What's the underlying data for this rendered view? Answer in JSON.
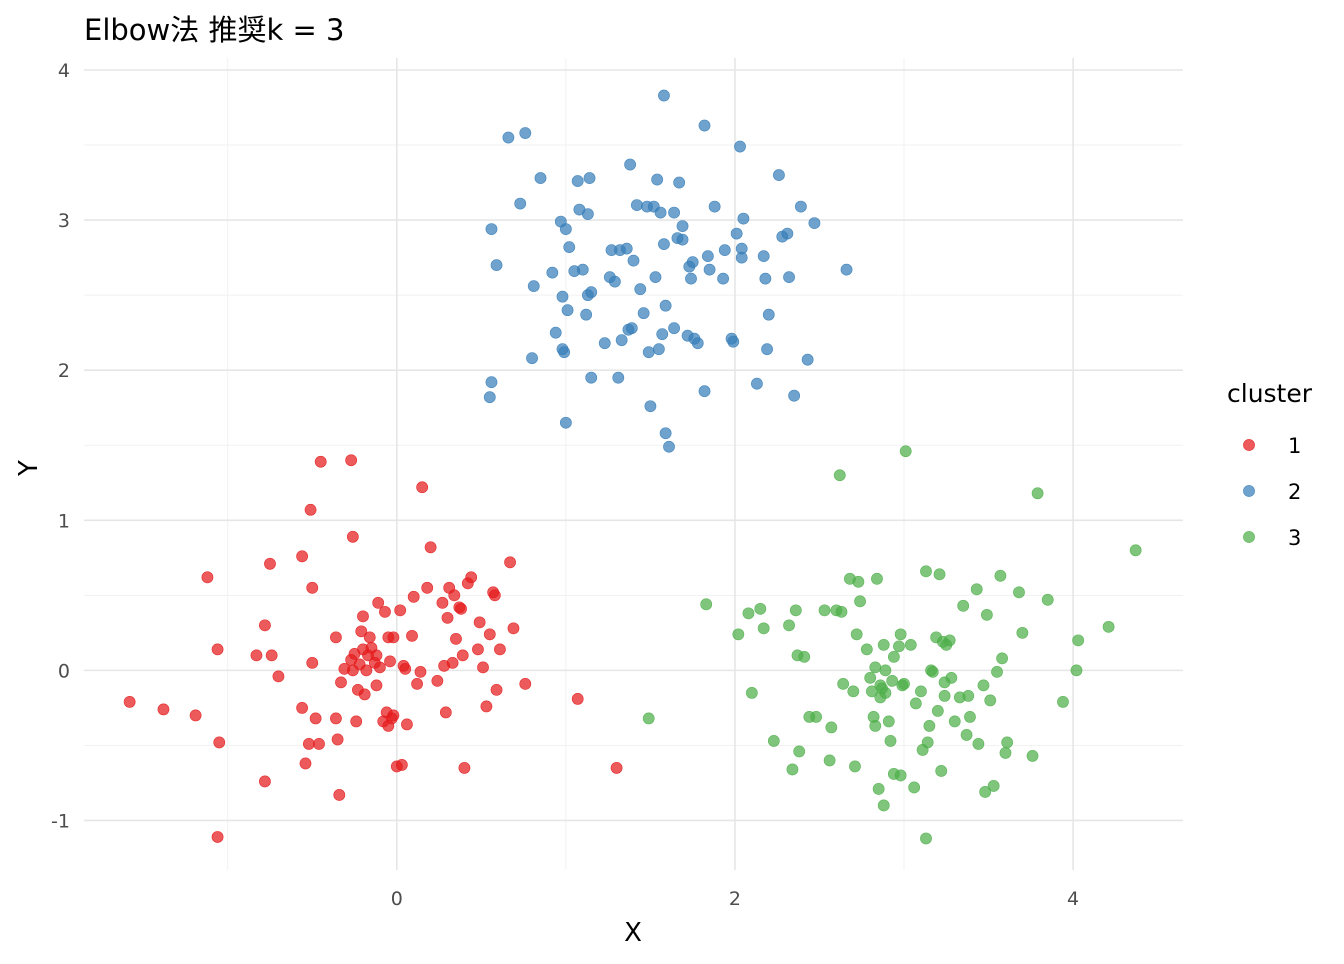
{
  "chart_data": {
    "type": "scatter",
    "title": "Elbow法 推奨k = 3",
    "xlabel": "X",
    "ylabel": "Y",
    "xlim": [
      -1.85,
      4.65
    ],
    "ylim": [
      -1.33,
      4.08
    ],
    "x_ticks": [
      0,
      2,
      4
    ],
    "y_ticks": [
      -1,
      0,
      1,
      2,
      3,
      4
    ],
    "grid": true,
    "legend": {
      "title": "cluster",
      "position": "right",
      "entries": [
        "1",
        "2",
        "3"
      ]
    },
    "colors": {
      "1": "#E41A1C",
      "2": "#377EB8",
      "3": "#4DAF4A"
    },
    "series": [
      {
        "name": "1",
        "points": [
          [
            -1.58,
            -0.21
          ],
          [
            -1.38,
            -0.26
          ],
          [
            -1.19,
            -0.3
          ],
          [
            -1.05,
            -0.48
          ],
          [
            -1.06,
            0.14
          ],
          [
            -1.12,
            0.62
          ],
          [
            -1.06,
            -1.11
          ],
          [
            -0.83,
            0.1
          ],
          [
            -0.78,
            -0.74
          ],
          [
            -0.78,
            0.3
          ],
          [
            -0.74,
            0.1
          ],
          [
            -0.75,
            0.71
          ],
          [
            -0.7,
            -0.04
          ],
          [
            -0.56,
            0.76
          ],
          [
            -0.56,
            -0.25
          ],
          [
            -0.52,
            -0.49
          ],
          [
            -0.5,
            0.05
          ],
          [
            -0.48,
            -0.32
          ],
          [
            -0.5,
            0.55
          ],
          [
            -0.54,
            -0.62
          ],
          [
            -0.51,
            1.07
          ],
          [
            -0.46,
            -0.49
          ],
          [
            -0.45,
            1.39
          ],
          [
            -0.36,
            -0.32
          ],
          [
            -0.36,
            0.22
          ],
          [
            -0.35,
            -0.46
          ],
          [
            -0.33,
            -0.08
          ],
          [
            -0.31,
            0.01
          ],
          [
            -0.34,
            -0.83
          ],
          [
            -0.27,
            1.4
          ],
          [
            -0.26,
            0.0
          ],
          [
            -0.27,
            0.07
          ],
          [
            -0.26,
            0.89
          ],
          [
            -0.25,
            0.11
          ],
          [
            -0.24,
            -0.34
          ],
          [
            -0.23,
            -0.13
          ],
          [
            -0.22,
            0.04
          ],
          [
            -0.21,
            0.26
          ],
          [
            -0.2,
            0.36
          ],
          [
            -0.19,
            -0.16
          ],
          [
            -0.18,
            0.0
          ],
          [
            -0.17,
            0.1
          ],
          [
            -0.16,
            0.22
          ],
          [
            -0.15,
            0.15
          ],
          [
            -0.13,
            0.05
          ],
          [
            -0.12,
            -0.1
          ],
          [
            -0.11,
            0.45
          ],
          [
            -0.1,
            0.02
          ],
          [
            -0.08,
            -0.34
          ],
          [
            -0.07,
            0.39
          ],
          [
            -0.06,
            -0.28
          ],
          [
            -0.05,
            0.22
          ],
          [
            -0.05,
            -0.37
          ],
          [
            -0.04,
            0.06
          ],
          [
            -0.03,
            -0.32
          ],
          [
            -0.02,
            0.22
          ],
          [
            0.0,
            -0.64
          ],
          [
            0.02,
            0.4
          ],
          [
            0.03,
            -0.63
          ],
          [
            0.04,
            0.03
          ],
          [
            0.05,
            0.01
          ],
          [
            0.06,
            -0.36
          ],
          [
            0.09,
            0.23
          ],
          [
            0.1,
            0.49
          ],
          [
            0.12,
            -0.09
          ],
          [
            0.15,
            1.22
          ],
          [
            0.18,
            0.55
          ],
          [
            0.2,
            0.82
          ],
          [
            0.24,
            -0.07
          ],
          [
            0.27,
            0.45
          ],
          [
            0.28,
            0.03
          ],
          [
            0.29,
            -0.28
          ],
          [
            0.31,
            0.55
          ],
          [
            0.33,
            0.05
          ],
          [
            0.34,
            0.5
          ],
          [
            0.35,
            0.21
          ],
          [
            0.37,
            0.42
          ],
          [
            0.39,
            0.1
          ],
          [
            0.4,
            -0.65
          ],
          [
            0.42,
            0.58
          ],
          [
            0.44,
            0.62
          ],
          [
            0.48,
            0.14
          ],
          [
            0.49,
            0.32
          ],
          [
            0.51,
            0.02
          ],
          [
            0.53,
            -0.24
          ],
          [
            0.55,
            0.24
          ],
          [
            0.57,
            0.52
          ],
          [
            0.59,
            -0.13
          ],
          [
            0.61,
            0.14
          ],
          [
            0.67,
            0.72
          ],
          [
            0.69,
            0.28
          ],
          [
            0.76,
            -0.09
          ],
          [
            1.07,
            -0.19
          ],
          [
            1.3,
            -0.65
          ],
          [
            0.38,
            0.41
          ],
          [
            -0.2,
            0.14
          ],
          [
            0.58,
            0.5
          ],
          [
            -0.02,
            -0.3
          ],
          [
            0.14,
            -0.01
          ],
          [
            0.3,
            0.35
          ],
          [
            -0.12,
            0.1
          ]
        ]
      },
      {
        "name": "2",
        "points": [
          [
            0.55,
            1.82
          ],
          [
            0.56,
            1.92
          ],
          [
            0.56,
            2.94
          ],
          [
            0.59,
            2.7
          ],
          [
            0.66,
            3.55
          ],
          [
            0.73,
            3.11
          ],
          [
            0.76,
            3.58
          ],
          [
            0.8,
            2.08
          ],
          [
            0.81,
            2.56
          ],
          [
            0.85,
            3.28
          ],
          [
            0.92,
            2.65
          ],
          [
            0.94,
            2.25
          ],
          [
            0.97,
            2.99
          ],
          [
            0.98,
            2.14
          ],
          [
            0.98,
            2.49
          ],
          [
            0.99,
            2.12
          ],
          [
            1.0,
            1.65
          ],
          [
            1.01,
            2.4
          ],
          [
            1.02,
            2.82
          ],
          [
            1.05,
            2.66
          ],
          [
            1.07,
            3.26
          ],
          [
            1.1,
            2.67
          ],
          [
            1.12,
            2.37
          ],
          [
            1.13,
            3.04
          ],
          [
            1.13,
            2.5
          ],
          [
            1.14,
            3.28
          ],
          [
            1.15,
            2.52
          ],
          [
            1.15,
            1.95
          ],
          [
            1.23,
            2.18
          ],
          [
            1.26,
            2.62
          ],
          [
            1.29,
            2.59
          ],
          [
            1.31,
            1.95
          ],
          [
            1.32,
            2.8
          ],
          [
            1.33,
            2.2
          ],
          [
            1.36,
            2.81
          ],
          [
            1.37,
            2.27
          ],
          [
            1.38,
            3.37
          ],
          [
            1.39,
            2.28
          ],
          [
            1.4,
            2.73
          ],
          [
            1.42,
            3.1
          ],
          [
            1.44,
            2.54
          ],
          [
            1.46,
            2.38
          ],
          [
            1.48,
            3.09
          ],
          [
            1.49,
            2.12
          ],
          [
            1.5,
            1.76
          ],
          [
            1.52,
            3.09
          ],
          [
            1.53,
            2.62
          ],
          [
            1.54,
            3.27
          ],
          [
            1.55,
            2.14
          ],
          [
            1.57,
            2.24
          ],
          [
            1.58,
            3.83
          ],
          [
            1.58,
            2.84
          ],
          [
            1.59,
            2.43
          ],
          [
            1.59,
            1.58
          ],
          [
            1.61,
            1.49
          ],
          [
            1.64,
            2.28
          ],
          [
            1.64,
            3.05
          ],
          [
            1.66,
            2.88
          ],
          [
            1.67,
            3.25
          ],
          [
            1.69,
            2.87
          ],
          [
            1.72,
            2.23
          ],
          [
            1.73,
            2.69
          ],
          [
            1.74,
            2.61
          ],
          [
            1.75,
            2.72
          ],
          [
            1.76,
            2.21
          ],
          [
            1.78,
            2.18
          ],
          [
            1.82,
            1.86
          ],
          [
            1.82,
            3.63
          ],
          [
            1.84,
            2.76
          ],
          [
            1.85,
            2.67
          ],
          [
            1.88,
            3.09
          ],
          [
            1.93,
            2.61
          ],
          [
            1.94,
            2.8
          ],
          [
            1.98,
            2.21
          ],
          [
            1.99,
            2.19
          ],
          [
            2.01,
            2.91
          ],
          [
            2.03,
            3.49
          ],
          [
            2.04,
            2.75
          ],
          [
            2.04,
            2.81
          ],
          [
            2.05,
            3.01
          ],
          [
            2.13,
            1.91
          ],
          [
            2.17,
            2.76
          ],
          [
            2.18,
            2.61
          ],
          [
            2.19,
            2.14
          ],
          [
            2.2,
            2.37
          ],
          [
            2.26,
            3.3
          ],
          [
            2.28,
            2.89
          ],
          [
            2.31,
            2.91
          ],
          [
            2.32,
            2.62
          ],
          [
            2.35,
            1.83
          ],
          [
            2.39,
            3.09
          ],
          [
            2.43,
            2.07
          ],
          [
            2.47,
            2.98
          ],
          [
            2.66,
            2.67
          ],
          [
            1.0,
            2.94
          ],
          [
            1.69,
            2.96
          ],
          [
            1.27,
            2.8
          ],
          [
            1.56,
            3.05
          ],
          [
            1.08,
            3.07
          ]
        ]
      },
      {
        "name": "3",
        "points": [
          [
            1.49,
            -0.32
          ],
          [
            1.83,
            0.44
          ],
          [
            2.02,
            0.24
          ],
          [
            2.08,
            0.38
          ],
          [
            2.1,
            -0.15
          ],
          [
            2.15,
            0.41
          ],
          [
            2.17,
            0.28
          ],
          [
            2.23,
            -0.47
          ],
          [
            2.32,
            0.3
          ],
          [
            2.34,
            -0.66
          ],
          [
            2.36,
            0.4
          ],
          [
            2.37,
            0.1
          ],
          [
            2.38,
            -0.54
          ],
          [
            2.41,
            0.09
          ],
          [
            2.44,
            -0.31
          ],
          [
            2.48,
            -0.31
          ],
          [
            2.53,
            0.4
          ],
          [
            2.56,
            -0.6
          ],
          [
            2.57,
            -0.38
          ],
          [
            2.6,
            0.4
          ],
          [
            2.62,
            1.3
          ],
          [
            2.63,
            0.39
          ],
          [
            2.64,
            -0.09
          ],
          [
            2.68,
            0.61
          ],
          [
            2.7,
            -0.14
          ],
          [
            2.71,
            -0.64
          ],
          [
            2.72,
            0.24
          ],
          [
            2.73,
            0.59
          ],
          [
            2.74,
            0.46
          ],
          [
            2.78,
            0.14
          ],
          [
            2.8,
            -0.05
          ],
          [
            2.81,
            -0.14
          ],
          [
            2.82,
            -0.31
          ],
          [
            2.83,
            0.02
          ],
          [
            2.83,
            -0.37
          ],
          [
            2.84,
            0.61
          ],
          [
            2.85,
            -0.79
          ],
          [
            2.86,
            -0.1
          ],
          [
            2.87,
            -0.12
          ],
          [
            2.88,
            -0.9
          ],
          [
            2.88,
            0.17
          ],
          [
            2.89,
            -0.15
          ],
          [
            2.89,
            0.0
          ],
          [
            2.91,
            -0.34
          ],
          [
            2.92,
            -0.47
          ],
          [
            2.93,
            -0.07
          ],
          [
            2.94,
            -0.69
          ],
          [
            2.97,
            0.16
          ],
          [
            2.98,
            -0.7
          ],
          [
            2.98,
            0.24
          ],
          [
            2.99,
            -0.1
          ],
          [
            3.0,
            -0.09
          ],
          [
            3.01,
            1.46
          ],
          [
            3.04,
            0.17
          ],
          [
            3.06,
            -0.78
          ],
          [
            3.1,
            -0.14
          ],
          [
            3.11,
            -0.53
          ],
          [
            3.13,
            -1.12
          ],
          [
            3.13,
            0.66
          ],
          [
            3.14,
            -0.48
          ],
          [
            3.15,
            -0.37
          ],
          [
            3.16,
            0.0
          ],
          [
            3.17,
            -0.01
          ],
          [
            3.19,
            0.22
          ],
          [
            3.2,
            -0.27
          ],
          [
            3.21,
            0.64
          ],
          [
            3.22,
            -0.67
          ],
          [
            3.23,
            0.19
          ],
          [
            3.24,
            -0.17
          ],
          [
            3.25,
            0.17
          ],
          [
            3.27,
            0.2
          ],
          [
            3.28,
            -0.05
          ],
          [
            3.3,
            -0.34
          ],
          [
            3.33,
            -0.18
          ],
          [
            3.35,
            0.43
          ],
          [
            3.37,
            -0.43
          ],
          [
            3.38,
            -0.17
          ],
          [
            3.39,
            -0.31
          ],
          [
            3.43,
            0.54
          ],
          [
            3.44,
            -0.49
          ],
          [
            3.47,
            -0.1
          ],
          [
            3.48,
            -0.81
          ],
          [
            3.51,
            -0.2
          ],
          [
            3.53,
            -0.77
          ],
          [
            3.55,
            -0.01
          ],
          [
            3.57,
            0.63
          ],
          [
            3.58,
            0.08
          ],
          [
            3.6,
            -0.55
          ],
          [
            3.61,
            -0.48
          ],
          [
            3.68,
            0.52
          ],
          [
            3.7,
            0.25
          ],
          [
            3.76,
            -0.57
          ],
          [
            3.79,
            1.18
          ],
          [
            3.85,
            0.47
          ],
          [
            3.94,
            -0.21
          ],
          [
            4.02,
            0.0
          ],
          [
            4.03,
            0.2
          ],
          [
            4.21,
            0.29
          ],
          [
            4.37,
            0.8
          ],
          [
            3.49,
            0.37
          ],
          [
            2.94,
            0.09
          ],
          [
            3.24,
            -0.08
          ],
          [
            3.07,
            -0.22
          ],
          [
            2.86,
            -0.18
          ]
        ]
      }
    ]
  }
}
